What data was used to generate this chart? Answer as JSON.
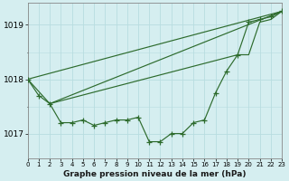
{
  "title": "Graphe pression niveau de la mer (hPa)",
  "background_color": "#d5eef0",
  "grid_color": "#b8dde0",
  "line_color": "#2d6b2d",
  "marker_color": "#2d6b2d",
  "xlim": [
    0,
    23
  ],
  "ylim": [
    1016.55,
    1019.4
  ],
  "yticks": [
    1017,
    1018,
    1019
  ],
  "xtick_labels": [
    "0",
    "1",
    "2",
    "3",
    "4",
    "5",
    "6",
    "7",
    "8",
    "9",
    "10",
    "11",
    "12",
    "13",
    "14",
    "15",
    "16",
    "17",
    "18",
    "19",
    "20",
    "21",
    "22",
    "23"
  ],
  "series": [
    {
      "x": [
        0,
        1,
        2,
        3,
        4,
        5,
        6,
        7,
        8,
        9,
        10,
        11,
        12,
        13,
        14,
        15,
        16,
        17,
        18,
        19,
        20,
        21,
        22,
        23
      ],
      "y": [
        1018.0,
        1017.7,
        1017.55,
        1017.2,
        1017.2,
        1017.25,
        1017.15,
        1017.2,
        1017.25,
        1017.25,
        1017.3,
        1016.85,
        1016.85,
        1017.0,
        1017.0,
        1017.2,
        1017.25,
        1017.75,
        1018.15,
        1018.45,
        1019.05,
        1019.1,
        1019.15,
        1019.25
      ],
      "has_markers": true
    },
    {
      "x": [
        0,
        23
      ],
      "y": [
        1018.0,
        1019.25
      ],
      "has_markers": false
    },
    {
      "x": [
        2,
        23
      ],
      "y": [
        1017.55,
        1019.25
      ],
      "has_markers": false
    },
    {
      "x": [
        0,
        2,
        19,
        20,
        21,
        22,
        23
      ],
      "y": [
        1018.0,
        1017.55,
        1018.45,
        1018.45,
        1019.05,
        1019.1,
        1019.25
      ],
      "has_markers": false
    }
  ]
}
